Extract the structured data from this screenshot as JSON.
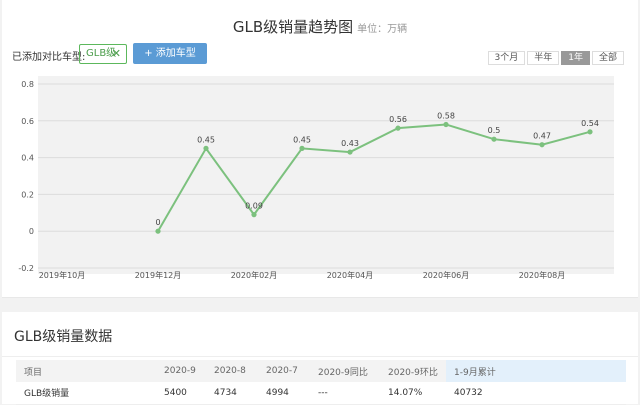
{
  "header": {
    "title": "GLB级销量趋势图",
    "unit": "单位：万辆"
  },
  "compare": {
    "label": "已添加对比车型:",
    "tag": "GLB级",
    "tag_close": "✕",
    "add_button": "+ 添加车型"
  },
  "range": {
    "options": [
      "3个月",
      "半年",
      "1年",
      "全部"
    ],
    "active": "1年"
  },
  "colors": {
    "series": "#7cc17e",
    "button": "#5b9bd5"
  },
  "chart_data": {
    "type": "line",
    "yticks": [
      "0.8",
      "0.6",
      "0.4",
      "0.2",
      "0",
      "-0.2"
    ],
    "ylim": [
      -0.2,
      0.8
    ],
    "x_tick_labels": [
      "2019年10月",
      "2019年12月",
      "2020年02月",
      "2020年04月",
      "2020年06月",
      "2020年08月"
    ],
    "x": [
      "2019-12",
      "2020-01",
      "2020-02",
      "2020-03",
      "2020-04",
      "2020-05",
      "2020-06",
      "2020-07",
      "2020-08",
      "2020-09"
    ],
    "values": [
      0,
      0.45,
      0.09,
      0.45,
      0.43,
      0.56,
      0.58,
      0.5,
      0.47,
      0.54
    ],
    "data_labels": [
      "0",
      "0.45",
      "0.09",
      "0.45",
      "0.43",
      "0.56",
      "0.58",
      "0.5",
      "0.47",
      "0.54"
    ],
    "grid": true
  },
  "table": {
    "heading": "GLB级销量数据",
    "columns": [
      "项目",
      "2020-9",
      "2020-8",
      "2020-7",
      "2020-9同比",
      "2020-9环比",
      "1-9月累计"
    ],
    "rows": [
      [
        "GLB级销量",
        "5400",
        "4734",
        "4994",
        "---",
        "14.07%",
        "40732"
      ]
    ]
  }
}
